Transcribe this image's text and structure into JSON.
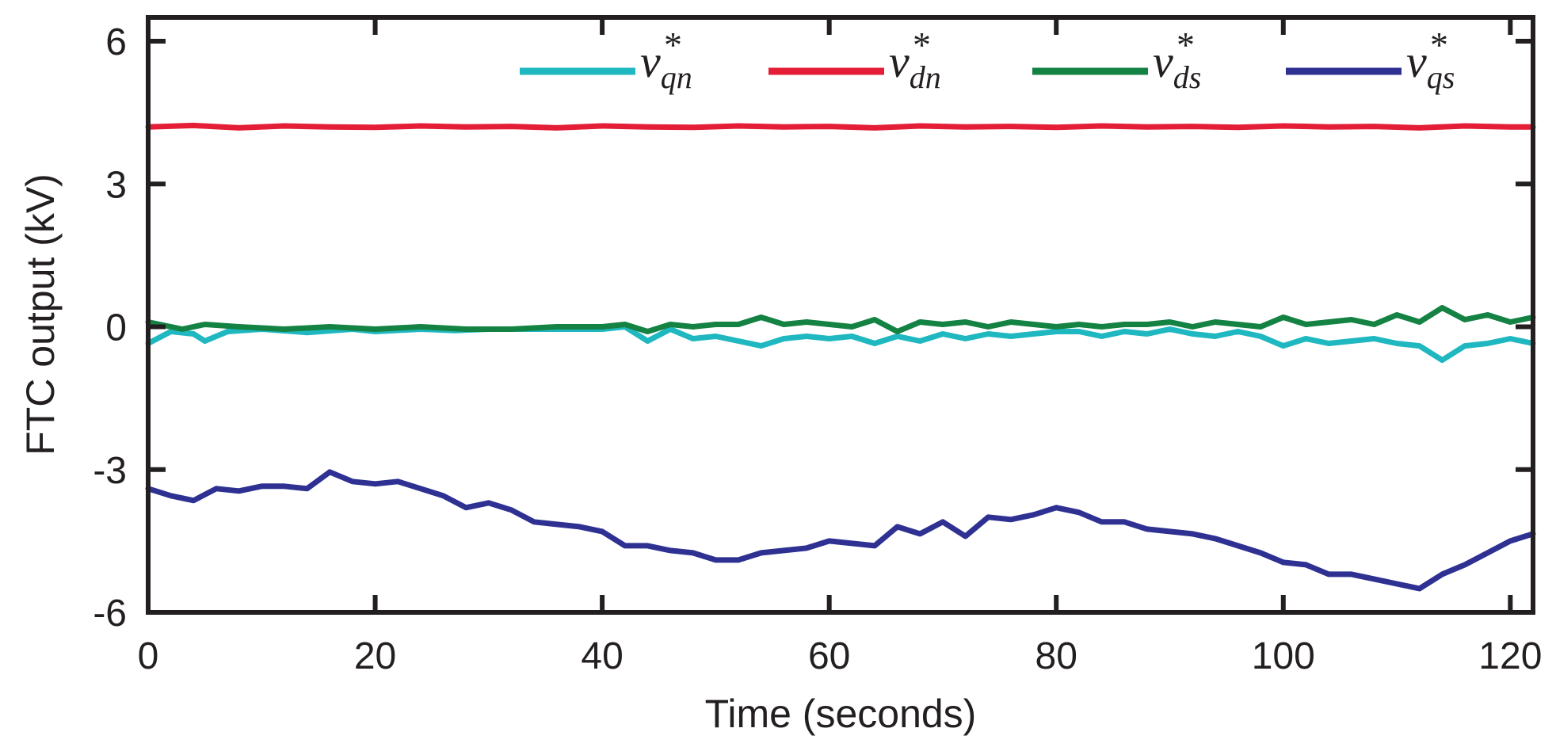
{
  "chart_data": {
    "type": "line",
    "title": "",
    "xlabel": "Time (seconds)",
    "ylabel": "FTC output (kV)",
    "xlim": [
      0,
      122
    ],
    "ylim": [
      -6,
      6.5
    ],
    "xticks": [
      0,
      20,
      40,
      60,
      80,
      100,
      120
    ],
    "xtick_labels": [
      "0",
      "20",
      "40",
      "60",
      "80",
      "100",
      "120"
    ],
    "yticks": [
      6,
      3,
      0,
      -3,
      -6
    ],
    "ytick_labels": [
      "6",
      "3",
      "0",
      "-3",
      "-6"
    ],
    "grid": false,
    "legend_position": "top",
    "series": [
      {
        "name": "v*qn",
        "symbol": "v",
        "subscript": "qn",
        "superscript": "*",
        "color": "#1fb8c0",
        "x": [
          0,
          2,
          4,
          5,
          7,
          10,
          14,
          18,
          20,
          24,
          27,
          30,
          34,
          38,
          40,
          42,
          44,
          46,
          48,
          50,
          52,
          54,
          56,
          58,
          60,
          62,
          64,
          66,
          68,
          70,
          72,
          74,
          76,
          78,
          80,
          82,
          84,
          86,
          88,
          90,
          92,
          94,
          96,
          98,
          100,
          102,
          104,
          106,
          108,
          110,
          112,
          114,
          116,
          118,
          120,
          122
        ],
        "y": [
          -0.35,
          -0.1,
          -0.15,
          -0.3,
          -0.1,
          -0.05,
          -0.12,
          -0.05,
          -0.1,
          -0.05,
          -0.08,
          -0.05,
          -0.05,
          -0.05,
          -0.05,
          0.0,
          -0.3,
          -0.05,
          -0.25,
          -0.2,
          -0.3,
          -0.4,
          -0.25,
          -0.2,
          -0.25,
          -0.2,
          -0.35,
          -0.2,
          -0.3,
          -0.15,
          -0.25,
          -0.15,
          -0.2,
          -0.15,
          -0.1,
          -0.1,
          -0.2,
          -0.1,
          -0.15,
          -0.05,
          -0.15,
          -0.2,
          -0.1,
          -0.2,
          -0.4,
          -0.25,
          -0.35,
          -0.3,
          -0.25,
          -0.35,
          -0.4,
          -0.7,
          -0.4,
          -0.35,
          -0.25,
          -0.35
        ]
      },
      {
        "name": "v*dn",
        "symbol": "v",
        "subscript": "dn",
        "superscript": "*",
        "color": "#e31e36",
        "x": [
          0,
          4,
          8,
          12,
          16,
          20,
          24,
          28,
          32,
          36,
          40,
          44,
          48,
          52,
          56,
          60,
          64,
          68,
          72,
          76,
          80,
          84,
          88,
          92,
          96,
          100,
          104,
          108,
          112,
          116,
          120,
          122
        ],
        "y": [
          4.2,
          4.23,
          4.18,
          4.22,
          4.2,
          4.19,
          4.22,
          4.2,
          4.21,
          4.18,
          4.22,
          4.2,
          4.19,
          4.22,
          4.2,
          4.21,
          4.18,
          4.22,
          4.2,
          4.21,
          4.19,
          4.22,
          4.2,
          4.21,
          4.19,
          4.22,
          4.2,
          4.21,
          4.18,
          4.22,
          4.2,
          4.2
        ]
      },
      {
        "name": "v*ds",
        "symbol": "v",
        "subscript": "ds",
        "superscript": "*",
        "color": "#148243",
        "x": [
          0,
          3,
          5,
          8,
          12,
          16,
          20,
          24,
          28,
          32,
          36,
          40,
          42,
          44,
          46,
          48,
          50,
          52,
          54,
          56,
          58,
          60,
          62,
          64,
          66,
          68,
          70,
          72,
          74,
          76,
          78,
          80,
          82,
          84,
          86,
          88,
          90,
          92,
          94,
          96,
          98,
          100,
          102,
          104,
          106,
          108,
          110,
          112,
          114,
          116,
          118,
          120,
          122
        ],
        "y": [
          0.1,
          -0.05,
          0.05,
          0.0,
          -0.05,
          0.0,
          -0.05,
          0.0,
          -0.05,
          -0.05,
          0.0,
          0.0,
          0.05,
          -0.1,
          0.05,
          0.0,
          0.05,
          0.05,
          0.2,
          0.05,
          0.1,
          0.05,
          0.0,
          0.15,
          -0.1,
          0.1,
          0.05,
          0.1,
          0.0,
          0.1,
          0.05,
          0.0,
          0.05,
          0.0,
          0.05,
          0.05,
          0.1,
          0.0,
          0.1,
          0.05,
          0.0,
          0.2,
          0.05,
          0.1,
          0.15,
          0.05,
          0.25,
          0.1,
          0.4,
          0.15,
          0.25,
          0.1,
          0.2
        ]
      },
      {
        "name": "v*qs",
        "symbol": "v",
        "subscript": "qs",
        "superscript": "*",
        "color": "#2e3192",
        "x": [
          0,
          2,
          4,
          6,
          8,
          10,
          12,
          14,
          16,
          18,
          20,
          22,
          24,
          26,
          28,
          30,
          32,
          34,
          36,
          38,
          40,
          42,
          44,
          46,
          48,
          50,
          52,
          54,
          56,
          58,
          60,
          62,
          64,
          66,
          68,
          70,
          72,
          74,
          76,
          78,
          80,
          82,
          84,
          86,
          88,
          90,
          92,
          94,
          96,
          98,
          100,
          102,
          104,
          106,
          108,
          110,
          112,
          114,
          116,
          118,
          120,
          122
        ],
        "y": [
          -3.4,
          -3.55,
          -3.65,
          -3.4,
          -3.45,
          -3.35,
          -3.35,
          -3.4,
          -3.05,
          -3.25,
          -3.3,
          -3.25,
          -3.4,
          -3.55,
          -3.8,
          -3.7,
          -3.85,
          -4.1,
          -4.15,
          -4.2,
          -4.3,
          -4.6,
          -4.6,
          -4.7,
          -4.75,
          -4.9,
          -4.9,
          -4.75,
          -4.7,
          -4.65,
          -4.5,
          -4.55,
          -4.6,
          -4.2,
          -4.35,
          -4.1,
          -4.4,
          -4.0,
          -4.05,
          -3.95,
          -3.8,
          -3.9,
          -4.1,
          -4.1,
          -4.25,
          -4.3,
          -4.35,
          -4.45,
          -4.6,
          -4.75,
          -4.95,
          -5.0,
          -5.2,
          -5.2,
          -5.3,
          -5.4,
          -5.5,
          -5.2,
          -5.0,
          -4.75,
          -4.5,
          -4.35
        ]
      }
    ]
  }
}
